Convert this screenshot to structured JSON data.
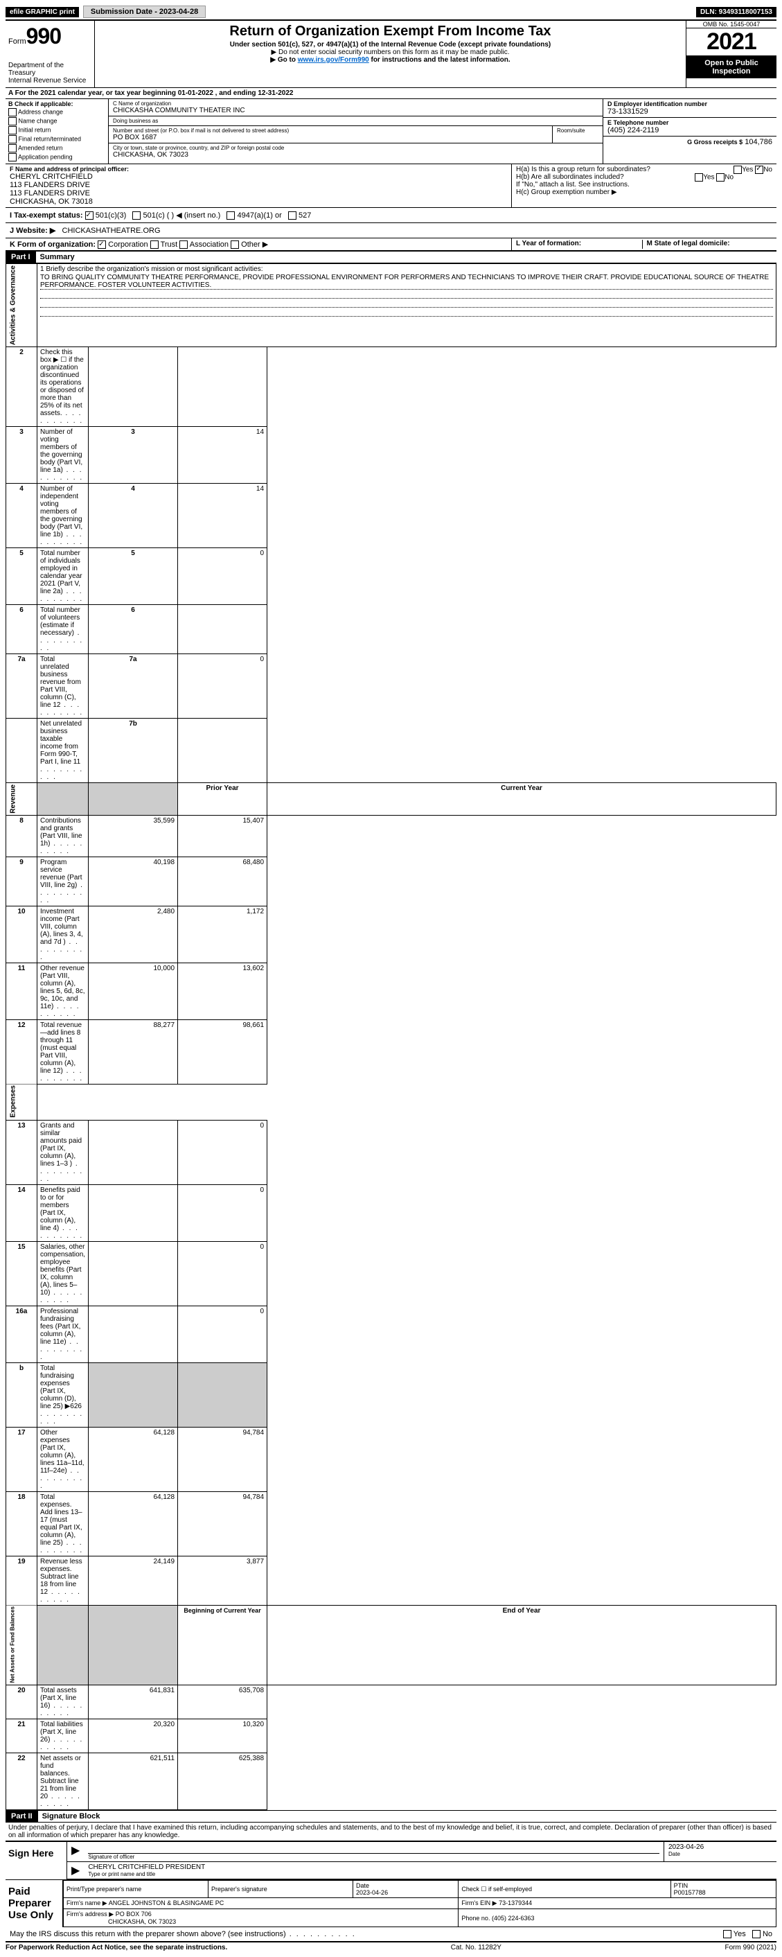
{
  "topbar": {
    "efile": "efile GRAPHIC print",
    "submission": "Submission Date - 2023-04-28",
    "dln": "DLN: 93493118007153"
  },
  "header": {
    "form_word": "Form",
    "form_num": "990",
    "title": "Return of Organization Exempt From Income Tax",
    "subtitle": "Under section 501(c), 527, or 4947(a)(1) of the Internal Revenue Code (except private foundations)",
    "note1": "▶ Do not enter social security numbers on this form as it may be made public.",
    "note2_pre": "▶ Go to ",
    "note2_link": "www.irs.gov/Form990",
    "note2_post": " for instructions and the latest information.",
    "dept": "Department of the Treasury",
    "irs": "Internal Revenue Service",
    "omb": "OMB No. 1545-0047",
    "year": "2021",
    "open": "Open to Public Inspection"
  },
  "a_line": "A For the 2021 calendar year, or tax year beginning 01-01-2022    , and ending 12-31-2022",
  "b": {
    "label": "B Check if applicable:",
    "opts": [
      "Address change",
      "Name change",
      "Initial return",
      "Final return/terminated",
      "Amended return",
      "Application pending"
    ]
  },
  "c": {
    "name_label": "C Name of organization",
    "name": "CHICKASHA COMMUNITY THEATER INC",
    "dba_label": "Doing business as",
    "dba": "",
    "addr_label": "Number and street (or P.O. box if mail is not delivered to street address)",
    "room_label": "Room/suite",
    "addr": "PO BOX 1687",
    "city_label": "City or town, state or province, country, and ZIP or foreign postal code",
    "city": "CHICKASHA, OK  73023"
  },
  "d": {
    "label": "D Employer identification number",
    "val": "73-1331529"
  },
  "e": {
    "label": "E Telephone number",
    "val": "(405) 224-2119"
  },
  "g": {
    "label": "G Gross receipts $",
    "val": "104,786"
  },
  "f": {
    "label": "F  Name and address of principal officer:",
    "name": "CHERYL CRITCHFIELD",
    "l1": "113 FLANDERS DRIVE",
    "l2": "113 FLANDERS DRIVE",
    "l3": "CHICKASHA, OK  73018"
  },
  "h": {
    "a_label": "H(a)  Is this a group return for subordinates?",
    "a_yes": "Yes",
    "a_no": "No",
    "b_label": "H(b)  Are all subordinates included?",
    "b_yes": "Yes",
    "b_no": "No",
    "b_note": "If \"No,\" attach a list. See instructions.",
    "c_label": "H(c)  Group exemption number ▶"
  },
  "i": {
    "label": "I    Tax-exempt status:",
    "o1": "501(c)(3)",
    "o2": "501(c) (  ) ◀ (insert no.)",
    "o3": "4947(a)(1) or",
    "o4": "527"
  },
  "j": {
    "label": "J   Website: ▶",
    "val": "CHICKASHATHEATRE.ORG"
  },
  "k": {
    "label": "K Form of organization:",
    "o1": "Corporation",
    "o2": "Trust",
    "o3": "Association",
    "o4": "Other ▶"
  },
  "l": {
    "label": "L Year of formation:",
    "val": ""
  },
  "m": {
    "label": "M State of legal domicile:",
    "val": ""
  },
  "part1": {
    "num": "Part I",
    "title": "Summary"
  },
  "mission_label": "1  Briefly describe the organization's mission or most significant activities:",
  "mission": "TO BRING QUALITY COMMUNITY THEATRE PERFORMANCE, PROVIDE PROFESSIONAL ENVIRONMENT FOR PERFORMERS AND TECHNICIANS TO IMPROVE THEIR CRAFT. PROVIDE EDUCATIONAL SOURCE OF THEATRE PERFORMANCE. FOSTER VOLUNTEER ACTIVITIES.",
  "vert": {
    "gov": "Activities & Governance",
    "rev": "Revenue",
    "exp": "Expenses",
    "net": "Net Assets or Fund Balances"
  },
  "lines_gov": [
    {
      "n": "2",
      "txt": "Check this box ▶ ☐  if the organization discontinued its operations or disposed of more than 25% of its net assets.",
      "ln": "",
      "v": ""
    },
    {
      "n": "3",
      "txt": "Number of voting members of the governing body (Part VI, line 1a)",
      "ln": "3",
      "v": "14"
    },
    {
      "n": "4",
      "txt": "Number of independent voting members of the governing body (Part VI, line 1b)",
      "ln": "4",
      "v": "14"
    },
    {
      "n": "5",
      "txt": "Total number of individuals employed in calendar year 2021 (Part V, line 2a)",
      "ln": "5",
      "v": "0"
    },
    {
      "n": "6",
      "txt": "Total number of volunteers (estimate if necessary)",
      "ln": "6",
      "v": ""
    },
    {
      "n": "7a",
      "txt": "Total unrelated business revenue from Part VIII, column (C), line 12",
      "ln": "7a",
      "v": "0"
    },
    {
      "n": "",
      "txt": "Net unrelated business taxable income from Form 990-T, Part I, line 11",
      "ln": "7b",
      "v": ""
    }
  ],
  "col_py": "Prior Year",
  "col_cy": "Current Year",
  "lines_rev": [
    {
      "n": "8",
      "txt": "Contributions and grants (Part VIII, line 1h)",
      "py": "35,599",
      "cy": "15,407"
    },
    {
      "n": "9",
      "txt": "Program service revenue (Part VIII, line 2g)",
      "py": "40,198",
      "cy": "68,480"
    },
    {
      "n": "10",
      "txt": "Investment income (Part VIII, column (A), lines 3, 4, and 7d )",
      "py": "2,480",
      "cy": "1,172"
    },
    {
      "n": "11",
      "txt": "Other revenue (Part VIII, column (A), lines 5, 6d, 8c, 9c, 10c, and 11e)",
      "py": "10,000",
      "cy": "13,602"
    },
    {
      "n": "12",
      "txt": "Total revenue—add lines 8 through 11 (must equal Part VIII, column (A), line 12)",
      "py": "88,277",
      "cy": "98,661"
    }
  ],
  "lines_exp": [
    {
      "n": "13",
      "txt": "Grants and similar amounts paid (Part IX, column (A), lines 1–3 )",
      "py": "",
      "cy": "0"
    },
    {
      "n": "14",
      "txt": "Benefits paid to or for members (Part IX, column (A), line 4)",
      "py": "",
      "cy": "0"
    },
    {
      "n": "15",
      "txt": "Salaries, other compensation, employee benefits (Part IX, column (A), lines 5–10)",
      "py": "",
      "cy": "0"
    },
    {
      "n": "16a",
      "txt": "Professional fundraising fees (Part IX, column (A), line 11e)",
      "py": "",
      "cy": "0"
    },
    {
      "n": "b",
      "txt": "Total fundraising expenses (Part IX, column (D), line 25) ▶626",
      "py": "SHADE",
      "cy": "SHADE"
    },
    {
      "n": "17",
      "txt": "Other expenses (Part IX, column (A), lines 11a–11d, 11f–24e)",
      "py": "64,128",
      "cy": "94,784"
    },
    {
      "n": "18",
      "txt": "Total expenses. Add lines 13–17 (must equal Part IX, column (A), line 25)",
      "py": "64,128",
      "cy": "94,784"
    },
    {
      "n": "19",
      "txt": "Revenue less expenses. Subtract line 18 from line 12",
      "py": "24,149",
      "cy": "3,877"
    }
  ],
  "col_beg": "Beginning of Current Year",
  "col_end": "End of Year",
  "lines_net": [
    {
      "n": "20",
      "txt": "Total assets (Part X, line 16)",
      "py": "641,831",
      "cy": "635,708"
    },
    {
      "n": "21",
      "txt": "Total liabilities (Part X, line 26)",
      "py": "20,320",
      "cy": "10,320"
    },
    {
      "n": "22",
      "txt": "Net assets or fund balances. Subtract line 21 from line 20",
      "py": "621,511",
      "cy": "625,388"
    }
  ],
  "part2": {
    "num": "Part II",
    "title": "Signature Block"
  },
  "penalties": "Under penalties of perjury, I declare that I have examined this return, including accompanying schedules and statements, and to the best of my knowledge and belief, it is true, correct, and complete. Declaration of preparer (other than officer) is based on all information of which preparer has any knowledge.",
  "sign": {
    "here": "Sign Here",
    "sig_label": "Signature of officer",
    "date": "2023-04-26",
    "date_label": "Date",
    "name": "CHERYL CRITCHFIELD  PRESIDENT",
    "name_label": "Type or print name and title"
  },
  "paid": {
    "label": "Paid Preparer Use Only",
    "h1": "Print/Type preparer's name",
    "h2": "Preparer's signature",
    "h3": "Date",
    "h4": "Check ☐ if self-employed",
    "h5": "PTIN",
    "date": "2023-04-26",
    "ptin": "P00157788",
    "firm_name_label": "Firm's name    ▶",
    "firm_name": "ANGEL JOHNSTON & BLASINGAME PC",
    "firm_ein_label": "Firm's EIN ▶",
    "firm_ein": "73-1379344",
    "firm_addr_label": "Firm's address ▶",
    "firm_addr1": "PO BOX 706",
    "firm_addr2": "CHICKASHA, OK  73023",
    "phone_label": "Phone no.",
    "phone": "(405) 224-6363"
  },
  "may_discuss": "May the IRS discuss this return with the preparer shown above? (see instructions)",
  "yes": "Yes",
  "no": "No",
  "footer": {
    "pra": "For Paperwork Reduction Act Notice, see the separate instructions.",
    "cat": "Cat. No. 11282Y",
    "form": "Form 990 (2021)"
  }
}
